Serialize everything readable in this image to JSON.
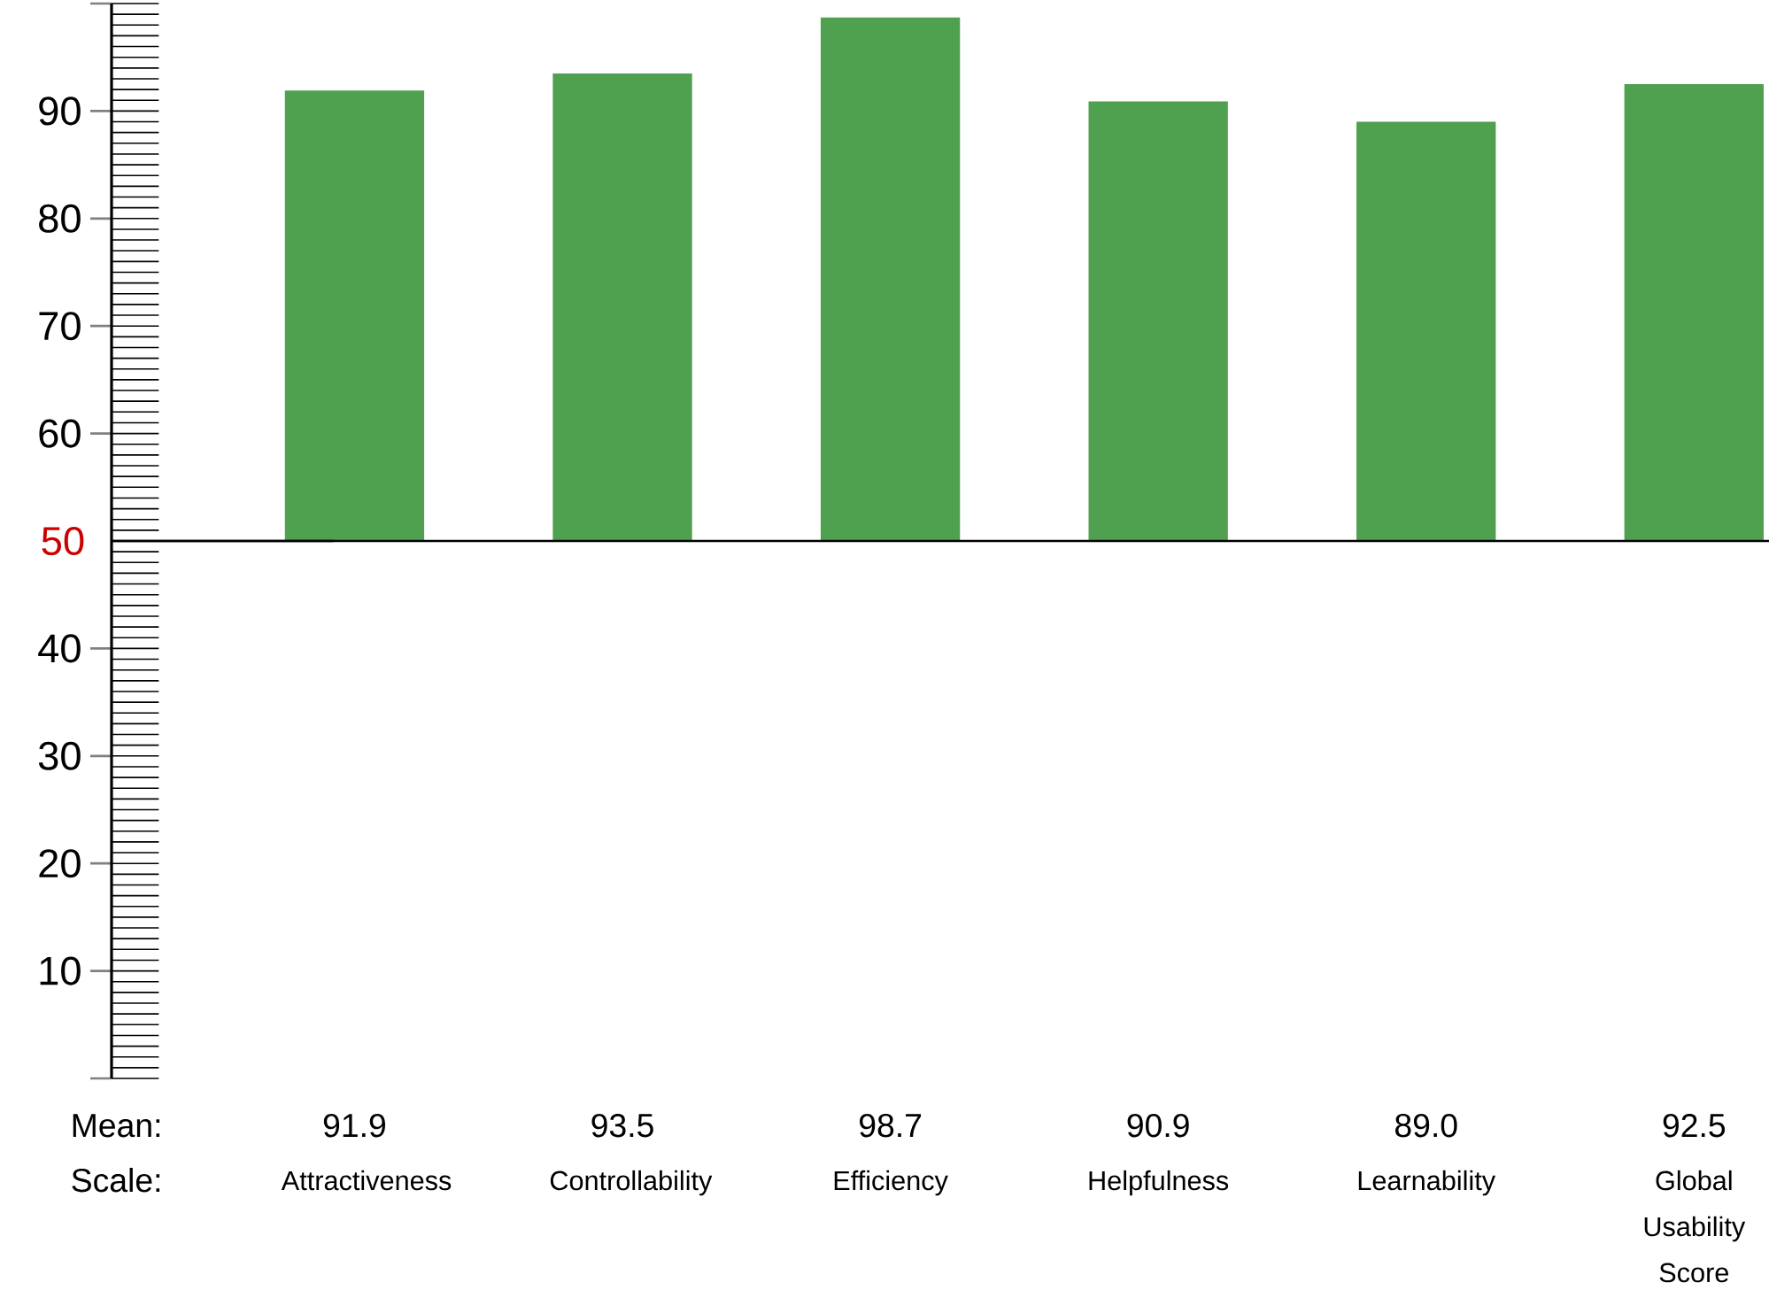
{
  "chart_data": {
    "type": "bar",
    "categories": [
      "Attractiveness",
      "Controllability",
      "Efficiency",
      "Helpfulness",
      "Learnability",
      "Global Usability Score"
    ],
    "base": [
      50,
      50,
      50,
      50,
      50,
      50
    ],
    "values": [
      41.9,
      43.5,
      48.7,
      40.9,
      39.0,
      42.5
    ],
    "value_labels": [
      "91.9",
      "93.5",
      "98.7",
      "90.9",
      "89.0",
      "92.5"
    ],
    "color": "#4fa04f",
    "ylim": [
      0,
      100
    ],
    "yticks": [
      {
        "value": 0,
        "label": null
      },
      10,
      20,
      30,
      40,
      60,
      70,
      80,
      90,
      {
        "value": 100,
        "label": null
      }
    ],
    "ref_lines": [
      {
        "axis": "y",
        "value": 50,
        "label": "50",
        "color": "#000000"
      }
    ],
    "annotations": [
      "Mean:",
      "Scale:"
    ],
    "grid": false
  }
}
